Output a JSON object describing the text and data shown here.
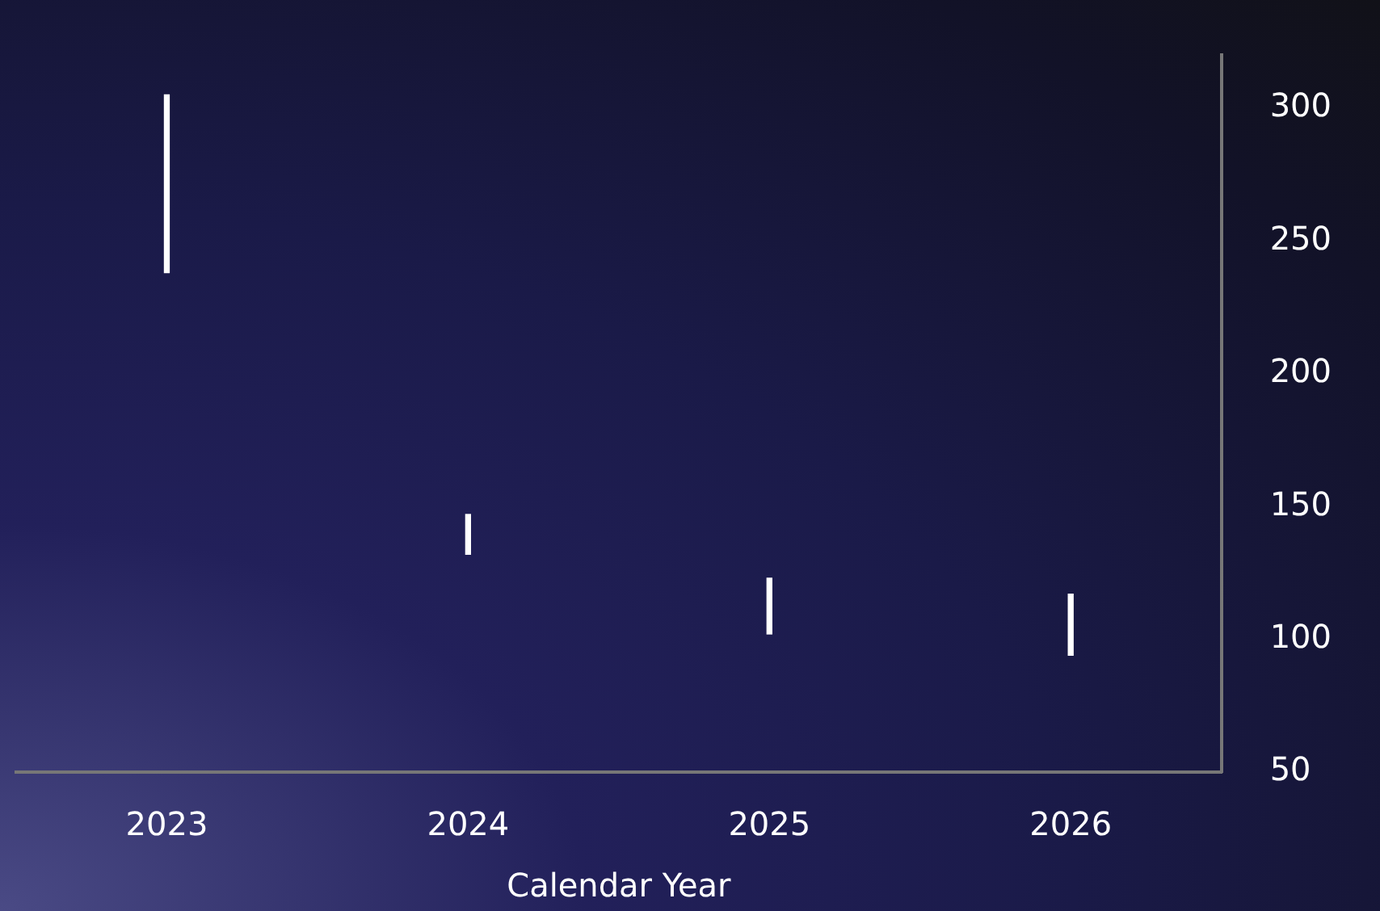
{
  "chart_data": {
    "type": "bar",
    "xlabel": "Calendar Year",
    "categories": [
      "2023",
      "2024",
      "2025",
      "2026"
    ],
    "base": [
      238,
      132,
      102,
      94
    ],
    "values": [
      67,
      15,
      21,
      23
    ],
    "color": "#ffffff",
    "ylim": [
      50,
      320
    ],
    "yticks": [
      50,
      100,
      150,
      200,
      250,
      300
    ],
    "grid": false,
    "legend": false
  }
}
